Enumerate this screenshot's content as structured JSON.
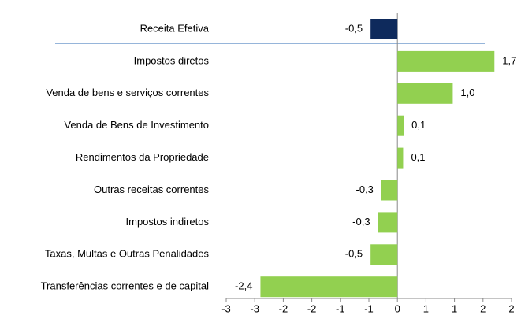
{
  "chart_data": {
    "type": "hbar",
    "categories": [
      "Receita Efetiva",
      "Impostos diretos",
      "Venda de bens e serviços correntes",
      "Venda de Bens de Investimento",
      "Rendimentos da Propriedade",
      "Outras receitas correntes",
      "Impostos indiretos",
      "Taxas, Multas e Outras Penalidades",
      "Transferências correntes e de capital"
    ],
    "values": [
      -0.47,
      1.7,
      0.97,
      0.11,
      0.1,
      -0.28,
      -0.34,
      -0.47,
      -2.4
    ],
    "value_labels": [
      "-0,5",
      "1,7",
      "1,0",
      "0,1",
      "0,1",
      "-0,3",
      "-0,3",
      "-0,5",
      "-2,4"
    ],
    "colors": [
      "#0e2a5c",
      "#92d050",
      "#92d050",
      "#92d050",
      "#92d050",
      "#92d050",
      "#92d050",
      "#92d050",
      "#92d050"
    ],
    "xlim": [
      -3,
      2
    ],
    "xticks": [
      {
        "value": -3,
        "label": "-3"
      },
      {
        "value": -2.5,
        "label": "-3"
      },
      {
        "value": -2,
        "label": "-2"
      },
      {
        "value": -1.5,
        "label": "-2"
      },
      {
        "value": -1,
        "label": "-1"
      },
      {
        "value": -0.5,
        "label": "-1"
      },
      0,
      {
        "value": 0.5,
        "label": "1"
      },
      {
        "value": 1,
        "label": "1"
      },
      {
        "value": 1.5,
        "label": "2"
      },
      {
        "value": 2,
        "label": "2"
      }
    ],
    "grid": false
  }
}
